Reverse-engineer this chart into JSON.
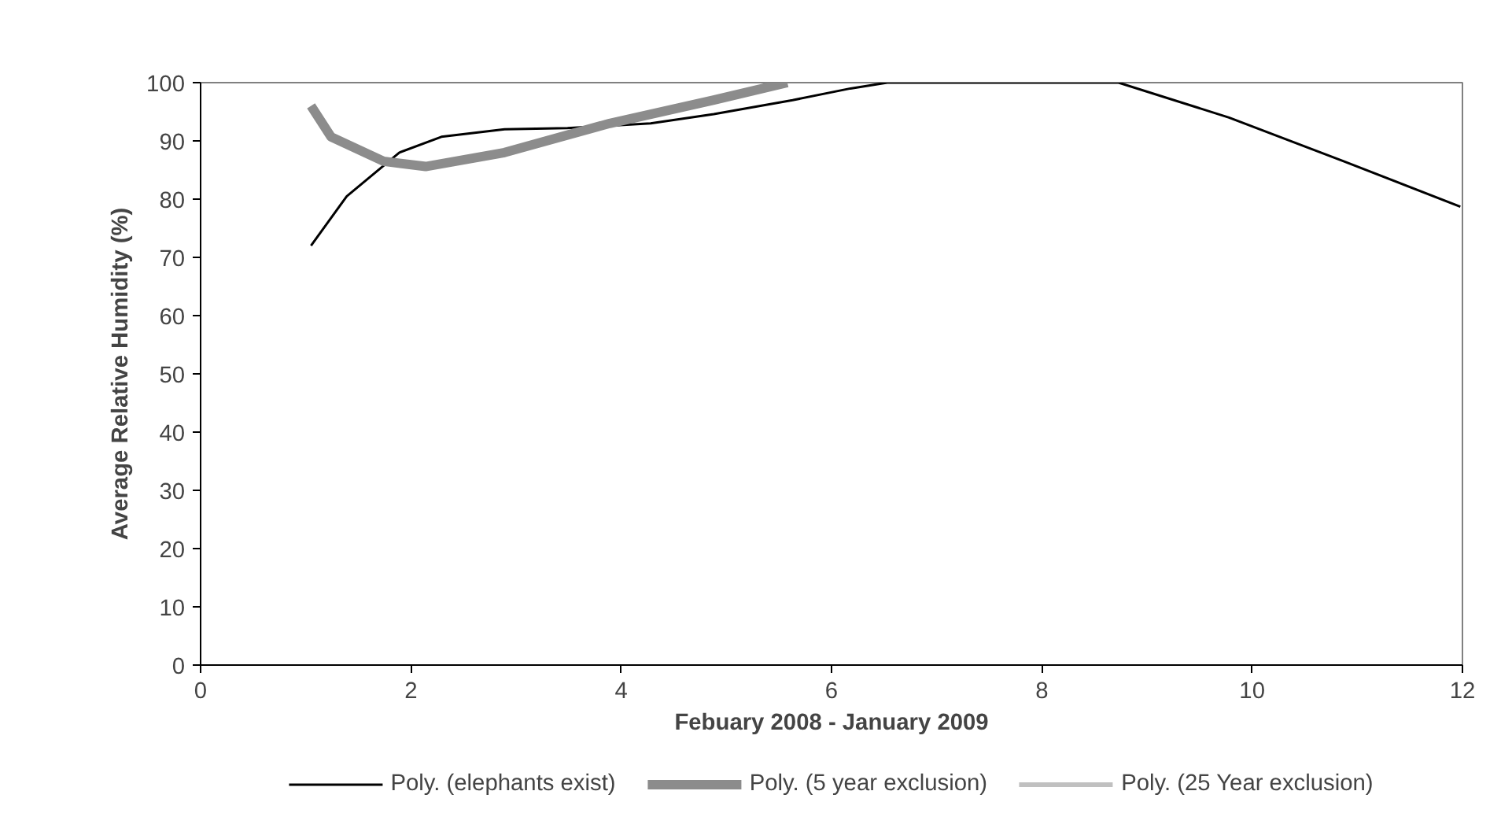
{
  "chart_data": {
    "type": "line",
    "xlabel": "Febuary 2008 - January 2009",
    "ylabel": "Average Relative Humidity (%)",
    "xlim": [
      0,
      12
    ],
    "ylim": [
      0,
      100
    ],
    "xticks": [
      0,
      2,
      4,
      6,
      8,
      10,
      12
    ],
    "yticks": [
      0,
      10,
      20,
      30,
      40,
      50,
      60,
      70,
      80,
      90,
      100
    ],
    "grid": false,
    "legend": "bottom",
    "marker": "none",
    "line_style": "solid",
    "series": [
      {
        "name": "Poly. (elephants exist)",
        "color": "#000000",
        "x": [
          1.05,
          1.39,
          1.89,
          2.29,
          2.89,
          3.49,
          4.28,
          4.88,
          5.63,
          6.18,
          6.53,
          8.73,
          9.78,
          10.87,
          11.98
        ],
        "values": [
          72,
          80.5,
          88,
          90.7,
          92,
          92.2,
          93,
          94.6,
          97,
          99,
          100,
          100,
          94,
          86.5,
          78.7
        ]
      },
      {
        "name": "Poly. (5 year exclusion)",
        "color": "#8c8c8c",
        "x": [
          1.05,
          1.24,
          1.74,
          2.14,
          2.89,
          3.89,
          4.88,
          5.58
        ],
        "values": [
          96,
          90.7,
          86.5,
          85.6,
          88,
          93,
          97,
          100
        ]
      },
      {
        "name": "Poly. (25 Year exclusion)",
        "color": "#c0c0c0",
        "values": [
          null
        ]
      }
    ]
  }
}
